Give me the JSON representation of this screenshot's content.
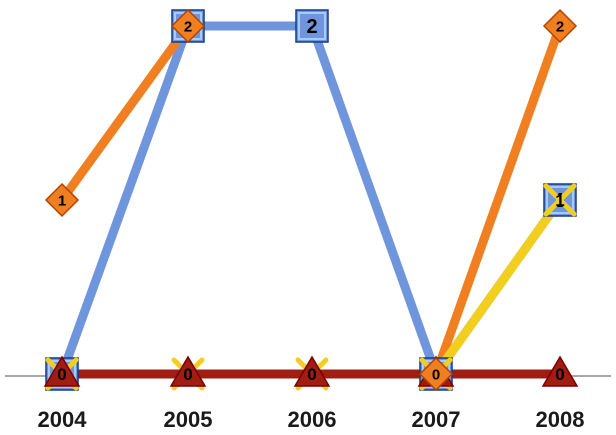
{
  "chart_data": {
    "type": "line",
    "title": "",
    "xlabel": "",
    "ylabel": "",
    "categories": [
      "2004",
      "2005",
      "2006",
      "2007",
      "2008"
    ],
    "ylim": [
      0,
      2
    ],
    "grid": false,
    "legend": "none",
    "series": [
      {
        "color": "#f07f22",
        "marker": "diamond",
        "values": [
          1,
          2,
          null,
          0,
          2
        ]
      },
      {
        "color": "#6f95dc",
        "marker": "square",
        "values": [
          0,
          2,
          2,
          0,
          1
        ]
      },
      {
        "color": "#f2cf1f",
        "marker": "x",
        "values": [
          0,
          0,
          0,
          0,
          1
        ]
      },
      {
        "color": "#a11d12",
        "marker": "triangle",
        "values": [
          0,
          0,
          0,
          0,
          0
        ]
      }
    ]
  }
}
